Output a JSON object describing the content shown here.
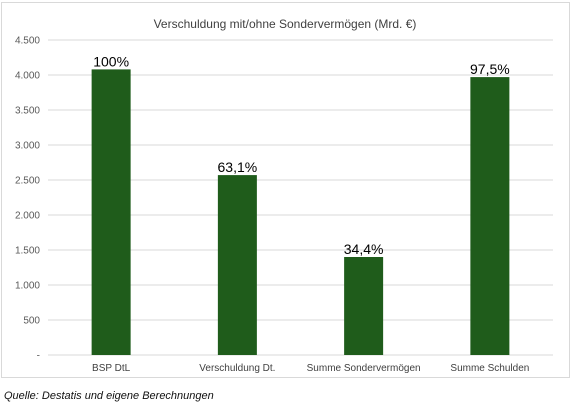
{
  "chart_data": {
    "type": "bar",
    "title": "Verschuldung mit/ohne Sondervermögen (Mrd. €)",
    "categories": [
      "BSP DtL",
      "Verschuldung Dt.",
      "Summe Sondervermögen",
      "Summe Schulden"
    ],
    "values": [
      4080,
      2570,
      1400,
      3970
    ],
    "data_labels": [
      "100%",
      "63,1%",
      "34,4%",
      "97,5%"
    ],
    "ylim": [
      0,
      4500
    ],
    "y_ticks": [
      0,
      500,
      1000,
      1500,
      2000,
      2500,
      3000,
      3500,
      4000,
      4500
    ],
    "y_tick_labels": [
      "-",
      "500",
      "1.000",
      "1.500",
      "2.000",
      "2.500",
      "3.000",
      "3.500",
      "4.000",
      "4.500"
    ],
    "grid": true,
    "legend": "none",
    "bar_color": "#1f5c1b",
    "grid_color": "#d9d9d9"
  },
  "source_note": "Quelle: Destatis und eigene Berechnungen"
}
